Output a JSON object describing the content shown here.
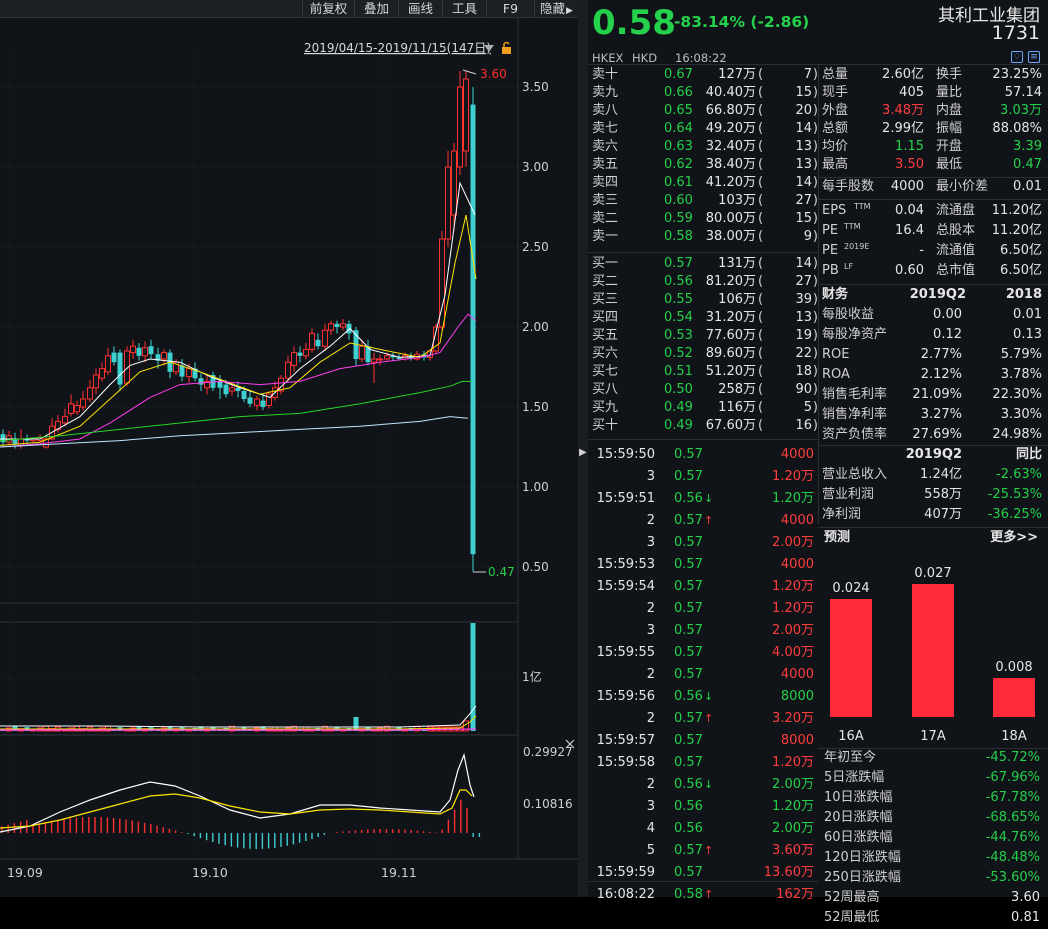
{
  "toolbar": {
    "buttons": [
      "前复权",
      "叠加",
      "画线",
      "工具",
      "F9",
      "隐藏"
    ],
    "expand_icon": "right-triangle-icon"
  },
  "chart": {
    "range_label": "2019/04/15-2019/11/15(147日)",
    "lock_icon": "lock-icon",
    "price_axis": [
      "3.50",
      "3.00",
      "2.50",
      "2.00",
      "1.50",
      "1.00",
      "0.50"
    ],
    "high_label": "3.60",
    "low_label": "0.47",
    "volume_axis": "1亿",
    "macd_axis": [
      "0.29927",
      "0.10816"
    ],
    "date_axis": [
      "19.09",
      "19.10",
      "19.11"
    ],
    "colors": {
      "up": "#ff3030",
      "down": "#3ed0d0",
      "ma5": "#ffffff",
      "ma10": "#ffe600",
      "ma20": "#ff3ff2",
      "ma60": "#27d727",
      "ma120": "#bfe8ff"
    }
  },
  "header": {
    "price": "0.58",
    "change": "-83.14% (-2.86)",
    "name": "其利工业集团",
    "code": "1731",
    "exchange": "HKEX",
    "currency": "HKD",
    "time": "16:08:22",
    "alert_icon": "bell-icon",
    "menu_icon": "menu-icon"
  },
  "sell": [
    {
      "label": "卖十",
      "price": "0.67",
      "vol": "127万",
      "count": "7"
    },
    {
      "label": "卖九",
      "price": "0.66",
      "vol": "40.40万",
      "count": "15"
    },
    {
      "label": "卖八",
      "price": "0.65",
      "vol": "66.80万",
      "count": "20"
    },
    {
      "label": "卖七",
      "price": "0.64",
      "vol": "49.20万",
      "count": "14"
    },
    {
      "label": "卖六",
      "price": "0.63",
      "vol": "32.40万",
      "count": "13"
    },
    {
      "label": "卖五",
      "price": "0.62",
      "vol": "38.40万",
      "count": "13"
    },
    {
      "label": "卖四",
      "price": "0.61",
      "vol": "41.20万",
      "count": "14"
    },
    {
      "label": "卖三",
      "price": "0.60",
      "vol": "103万",
      "count": "27"
    },
    {
      "label": "卖二",
      "price": "0.59",
      "vol": "80.00万",
      "count": "15"
    },
    {
      "label": "卖一",
      "price": "0.58",
      "vol": "38.00万",
      "count": "9"
    }
  ],
  "buy": [
    {
      "label": "买一",
      "price": "0.57",
      "vol": "131万",
      "count": "14"
    },
    {
      "label": "买二",
      "price": "0.56",
      "vol": "81.20万",
      "count": "27"
    },
    {
      "label": "买三",
      "price": "0.55",
      "vol": "106万",
      "count": "39"
    },
    {
      "label": "买四",
      "price": "0.54",
      "vol": "31.20万",
      "count": "13"
    },
    {
      "label": "买五",
      "price": "0.53",
      "vol": "77.60万",
      "count": "19"
    },
    {
      "label": "买六",
      "price": "0.52",
      "vol": "89.60万",
      "count": "22"
    },
    {
      "label": "买七",
      "price": "0.51",
      "vol": "51.20万",
      "count": "18"
    },
    {
      "label": "买八",
      "price": "0.50",
      "vol": "258万",
      "count": "90"
    },
    {
      "label": "买九",
      "price": "0.49",
      "vol": "116万",
      "count": "5"
    },
    {
      "label": "买十",
      "price": "0.49",
      "vol": "67.60万",
      "count": "16"
    }
  ],
  "stats": [
    {
      "l1": "总量",
      "v1": "2.60亿",
      "c1": "white",
      "l2": "换手",
      "v2": "23.25%",
      "c2": "white"
    },
    {
      "l1": "现手",
      "v1": "405",
      "c1": "white",
      "l2": "量比",
      "v2": "57.14",
      "c2": "white"
    },
    {
      "l1": "外盘",
      "v1": "3.48万",
      "c1": "red",
      "l2": "内盘",
      "v2": "3.03万",
      "c2": "green"
    },
    {
      "l1": "总额",
      "v1": "2.99亿",
      "c1": "white",
      "l2": "振幅",
      "v2": "88.08%",
      "c2": "white"
    },
    {
      "l1": "均价",
      "v1": "1.15",
      "c1": "green",
      "l2": "开盘",
      "v2": "3.39",
      "c2": "green"
    },
    {
      "l1": "最高",
      "v1": "3.50",
      "c1": "red",
      "l2": "最低",
      "v2": "0.47",
      "c2": "green"
    }
  ],
  "lot": {
    "l1": "每手股数",
    "v1": "4000",
    "l2": "最小价差",
    "v2": "0.01"
  },
  "valuation": [
    {
      "l1": "EPS",
      "s1": "TTM",
      "v1": "0.04",
      "l2": "流通盘",
      "v2": "11.20亿"
    },
    {
      "l1": "PE",
      "s1": "TTM",
      "v1": "16.4",
      "l2": "总股本",
      "v2": "11.20亿"
    },
    {
      "l1": "PE",
      "s1": "2019E",
      "v1": "-",
      "l2": "流通值",
      "v2": "6.50亿"
    },
    {
      "l1": "PB",
      "s1": "LF",
      "v1": "0.60",
      "l2": "总市值",
      "v2": "6.50亿"
    }
  ],
  "finance": {
    "header": [
      "财务",
      "2019Q2",
      "2018"
    ],
    "rows": [
      [
        "每股收益",
        "0.00",
        "0.01"
      ],
      [
        "每股净资产",
        "0.12",
        "0.13"
      ],
      [
        "ROE",
        "2.77%",
        "5.79%"
      ],
      [
        "ROA",
        "2.12%",
        "3.78%"
      ],
      [
        "销售毛利率",
        "21.09%",
        "22.30%"
      ],
      [
        "销售净利率",
        "3.27%",
        "3.30%"
      ],
      [
        "资产负债率",
        "27.69%",
        "24.98%"
      ]
    ]
  },
  "growth": {
    "header": [
      "2019Q2",
      "同比"
    ],
    "rows": [
      [
        "营业总收入",
        "1.24亿",
        "-2.63%"
      ],
      [
        "营业利润",
        "558万",
        "-25.53%"
      ],
      [
        "净利润",
        "407万",
        "-36.25%"
      ]
    ]
  },
  "forecast": {
    "title": "预测",
    "more": "更多>>",
    "bars": [
      {
        "label": "16A",
        "value": 0.024,
        "text": "0.024"
      },
      {
        "label": "17A",
        "value": 0.027,
        "text": "0.027"
      },
      {
        "label": "18A",
        "value": 0.008,
        "text": "0.008"
      }
    ]
  },
  "performance": [
    [
      "年初至今",
      "-45.72%"
    ],
    [
      "5日涨跌幅",
      "-67.96%"
    ],
    [
      "10日涨跌幅",
      "-67.78%"
    ],
    [
      "20日涨跌幅",
      "-68.65%"
    ],
    [
      "60日涨跌幅",
      "-44.76%"
    ],
    [
      "120日涨跌幅",
      "-48.48%"
    ],
    [
      "250日涨跌幅",
      "-53.60%"
    ],
    [
      "52周最高",
      "3.60"
    ],
    [
      "52周最低",
      "0.81"
    ]
  ],
  "ticks": [
    {
      "time": "15:59:50",
      "price": "0.57",
      "arrow": "",
      "vol": "4000",
      "vc": "red"
    },
    {
      "time": "3",
      "price": "0.57",
      "arrow": "",
      "vol": "1.20万",
      "vc": "red"
    },
    {
      "time": "15:59:51",
      "price": "0.56",
      "arrow": "down",
      "vol": "1.20万",
      "vc": "green"
    },
    {
      "time": "2",
      "price": "0.57",
      "arrow": "up",
      "vol": "4000",
      "vc": "red"
    },
    {
      "time": "3",
      "price": "0.57",
      "arrow": "",
      "vol": "2.00万",
      "vc": "red"
    },
    {
      "time": "15:59:53",
      "price": "0.57",
      "arrow": "",
      "vol": "4000",
      "vc": "red"
    },
    {
      "time": "15:59:54",
      "price": "0.57",
      "arrow": "",
      "vol": "1.20万",
      "vc": "red"
    },
    {
      "time": "2",
      "price": "0.57",
      "arrow": "",
      "vol": "1.20万",
      "vc": "red"
    },
    {
      "time": "3",
      "price": "0.57",
      "arrow": "",
      "vol": "2.00万",
      "vc": "red"
    },
    {
      "time": "15:59:55",
      "price": "0.57",
      "arrow": "",
      "vol": "4.00万",
      "vc": "red"
    },
    {
      "time": "2",
      "price": "0.57",
      "arrow": "",
      "vol": "4000",
      "vc": "red"
    },
    {
      "time": "15:59:56",
      "price": "0.56",
      "arrow": "down",
      "vol": "8000",
      "vc": "green"
    },
    {
      "time": "2",
      "price": "0.57",
      "arrow": "up",
      "vol": "3.20万",
      "vc": "red"
    },
    {
      "time": "15:59:57",
      "price": "0.57",
      "arrow": "",
      "vol": "8000",
      "vc": "red"
    },
    {
      "time": "15:59:58",
      "price": "0.57",
      "arrow": "",
      "vol": "1.20万",
      "vc": "red"
    },
    {
      "time": "2",
      "price": "0.56",
      "arrow": "down",
      "vol": "2.00万",
      "vc": "green"
    },
    {
      "time": "3",
      "price": "0.56",
      "arrow": "",
      "vol": "1.20万",
      "vc": "green"
    },
    {
      "time": "4",
      "price": "0.56",
      "arrow": "",
      "vol": "2.00万",
      "vc": "green"
    },
    {
      "time": "5",
      "price": "0.57",
      "arrow": "up",
      "vol": "3.60万",
      "vc": "red"
    },
    {
      "time": "15:59:59",
      "price": "0.57",
      "arrow": "",
      "vol": "13.60万",
      "vc": "red"
    },
    {
      "time": "16:08:22",
      "price": "0.58",
      "arrow": "up",
      "vol": "162万",
      "vc": "red"
    }
  ]
}
